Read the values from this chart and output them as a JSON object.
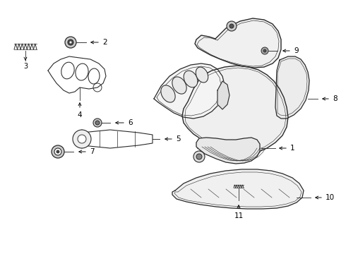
{
  "bg_color": "#ffffff",
  "line_color": "#2a2a2a",
  "figsize": [
    4.9,
    3.6
  ],
  "dpi": 100,
  "border_color": "#cccccc"
}
